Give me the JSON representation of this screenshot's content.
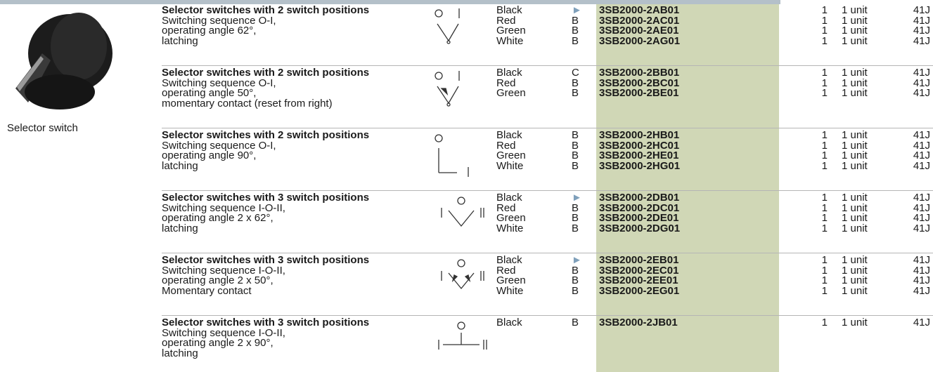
{
  "image": {
    "caption": "Selector switch"
  },
  "groups": [
    {
      "title": "Selector switches with 2 switch positions",
      "lines": [
        "Switching sequence O-I,",
        "operating angle 62°,",
        "latching"
      ],
      "items": [
        {
          "color": "Black",
          "code": "►",
          "order": "3SB2000-2AB01",
          "qty": 1,
          "unit": "1 unit",
          "pg": "41J"
        },
        {
          "color": "Red",
          "code": "B",
          "order": "3SB2000-2AC01",
          "qty": 1,
          "unit": "1 unit",
          "pg": "41J"
        },
        {
          "color": "Green",
          "code": "B",
          "order": "3SB2000-2AE01",
          "qty": 1,
          "unit": "1 unit",
          "pg": "41J"
        },
        {
          "color": "White",
          "code": "B",
          "order": "3SB2000-2AG01",
          "qty": 1,
          "unit": "1 unit",
          "pg": "41J"
        }
      ]
    },
    {
      "title": "Selector switches with 2 switch positions",
      "lines": [
        "Switching sequence O-I,",
        "operating angle 50°,",
        "momentary contact (reset from right)"
      ],
      "items": [
        {
          "color": "Black",
          "code": "C",
          "order": "3SB2000-2BB01",
          "qty": 1,
          "unit": "1 unit",
          "pg": "41J"
        },
        {
          "color": "Red",
          "code": "B",
          "order": "3SB2000-2BC01",
          "qty": 1,
          "unit": "1 unit",
          "pg": "41J"
        },
        {
          "color": "Green",
          "code": "B",
          "order": "3SB2000-2BE01",
          "qty": 1,
          "unit": "1 unit",
          "pg": "41J"
        }
      ]
    },
    {
      "title": "Selector switches with 2 switch positions",
      "lines": [
        "Switching sequence O-I,",
        "operating angle 90°,",
        "latching"
      ],
      "items": [
        {
          "color": "Black",
          "code": "B",
          "order": "3SB2000-2HB01",
          "qty": 1,
          "unit": "1 unit",
          "pg": "41J"
        },
        {
          "color": "Red",
          "code": "B",
          "order": "3SB2000-2HC01",
          "qty": 1,
          "unit": "1 unit",
          "pg": "41J"
        },
        {
          "color": "Green",
          "code": "B",
          "order": "3SB2000-2HE01",
          "qty": 1,
          "unit": "1 unit",
          "pg": "41J"
        },
        {
          "color": "White",
          "code": "B",
          "order": "3SB2000-2HG01",
          "qty": 1,
          "unit": "1 unit",
          "pg": "41J"
        }
      ]
    },
    {
      "title": "Selector switches with 3 switch positions",
      "lines": [
        "Switching sequence I-O-II,",
        "operating angle 2 x 62°,",
        "latching"
      ],
      "items": [
        {
          "color": "Black",
          "code": "►",
          "order": "3SB2000-2DB01",
          "qty": 1,
          "unit": "1 unit",
          "pg": "41J"
        },
        {
          "color": "Red",
          "code": "B",
          "order": "3SB2000-2DC01",
          "qty": 1,
          "unit": "1 unit",
          "pg": "41J"
        },
        {
          "color": "Green",
          "code": "B",
          "order": "3SB2000-2DE01",
          "qty": 1,
          "unit": "1 unit",
          "pg": "41J"
        },
        {
          "color": "White",
          "code": "B",
          "order": "3SB2000-2DG01",
          "qty": 1,
          "unit": "1 unit",
          "pg": "41J"
        }
      ]
    },
    {
      "title": "Selector switches with 3 switch positions",
      "lines": [
        "Switching sequence I-O-II,",
        "operating angle 2 x 50°,",
        "Momentary contact"
      ],
      "items": [
        {
          "color": "Black",
          "code": "►",
          "order": "3SB2000-2EB01",
          "qty": 1,
          "unit": "1 unit",
          "pg": "41J"
        },
        {
          "color": "Red",
          "code": "B",
          "order": "3SB2000-2EC01",
          "qty": 1,
          "unit": "1 unit",
          "pg": "41J"
        },
        {
          "color": "Green",
          "code": "B",
          "order": "3SB2000-2EE01",
          "qty": 1,
          "unit": "1 unit",
          "pg": "41J"
        },
        {
          "color": "White",
          "code": "B",
          "order": "3SB2000-2EG01",
          "qty": 1,
          "unit": "1 unit",
          "pg": "41J"
        }
      ]
    },
    {
      "title": "Selector switches with 3 switch positions",
      "lines": [
        "Switching sequence I-O-II,",
        "operating angle 2 x 90°,",
        "latching"
      ],
      "items": [
        {
          "color": "Black",
          "code": "B",
          "order": "3SB2000-2JB01",
          "qty": 1,
          "unit": "1 unit",
          "pg": "41J"
        }
      ]
    }
  ]
}
